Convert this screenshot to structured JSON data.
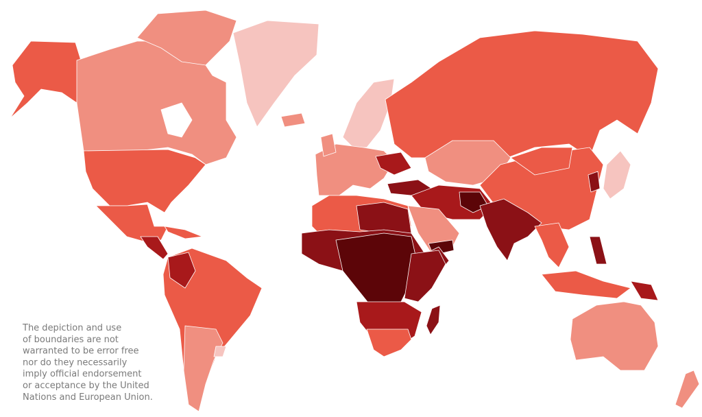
{
  "disclaimer": {
    "lines": [
      "The depiction and use",
      "of boundaries are not",
      "warranted to be error free",
      "nor do they necessarily",
      "imply official endorsement",
      "or acceptance by the United",
      "Nations and European Union."
    ]
  }
}
